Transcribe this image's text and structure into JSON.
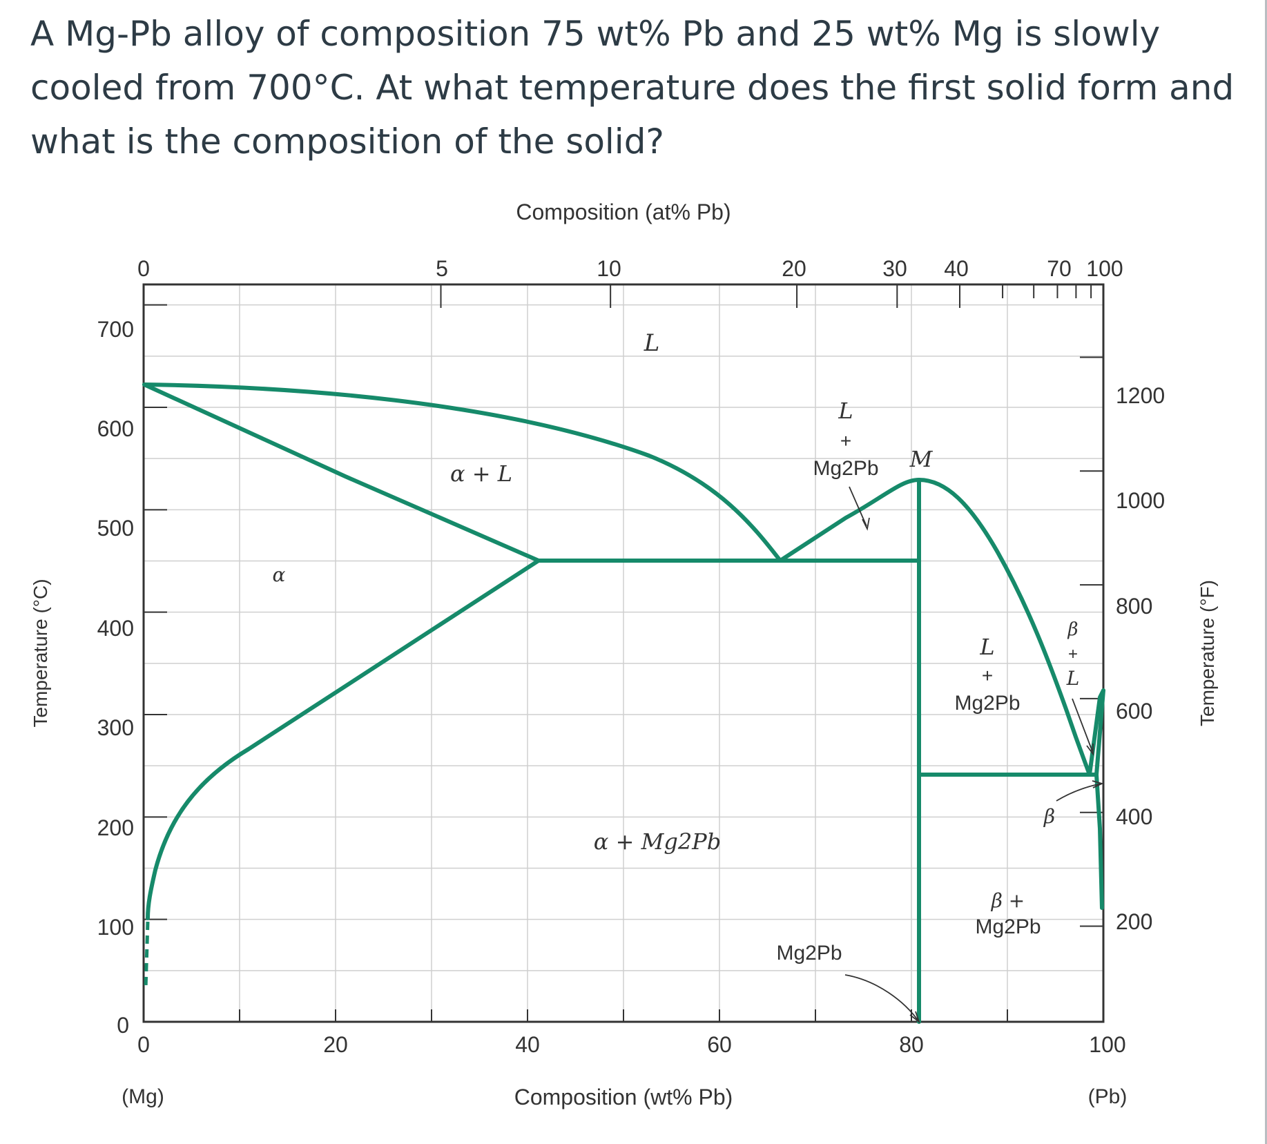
{
  "question": {
    "line1": "A Mg-Pb alloy of composition 75 wt% Pb and 25 wt% Mg is slowly",
    "line2": "cooled from 700°C. At what temperature does the first solid form and",
    "line3": "what is the composition of the solid?"
  },
  "chart_data": {
    "type": "phase-diagram",
    "x_top_label": "Composition (at% Pb)",
    "x_bottom_label": "Composition (wt% Pb)",
    "y_left_label": "Temperature (°C)",
    "y_right_label": "Temperature (°F)",
    "x_bottom_ticks": [
      "0",
      "20",
      "40",
      "60",
      "80",
      "100"
    ],
    "x_top_ticks": [
      "0",
      "5",
      "10",
      "20",
      "30",
      "40",
      "70",
      "100"
    ],
    "y_left_ticks": [
      "0",
      "100",
      "200",
      "300",
      "400",
      "500",
      "600",
      "700"
    ],
    "y_right_ticks": [
      "200",
      "400",
      "600",
      "800",
      "1000",
      "1200"
    ],
    "end_labels": {
      "left": "(Mg)",
      "right": "(Pb)"
    },
    "xlim": [
      0,
      100
    ],
    "ylim": [
      0,
      720
    ],
    "line_color": "#168a6a",
    "region_labels": {
      "L": "L",
      "alpha_L": "α + L",
      "alpha": "α",
      "L_Mg2Pb_top_1": "L",
      "L_Mg2Pb_top_2": "+",
      "L_Mg2Pb_top_3": "Mg2Pb",
      "M": "M",
      "alpha_Mg2Pb": "α + Mg2Pb",
      "L_Mg2Pb_right_1": "L",
      "L_Mg2Pb_right_2": "+",
      "L_Mg2Pb_right_3": "Mg2Pb",
      "beta_L_1": "β",
      "beta_L_2": "+",
      "beta_L_3": "L",
      "beta": "β",
      "beta_Mg2Pb_1": "β +",
      "beta_Mg2Pb_2": "Mg2Pb",
      "Mg2Pb": "Mg2Pb"
    },
    "key_points": {
      "Mg_melting": {
        "x": 0,
        "y": 650
      },
      "alpha_eutectic_solubility": {
        "x": 41,
        "y": 466
      },
      "eutectic_1": {
        "x": 67,
        "y": 466
      },
      "congruent_M": {
        "x": 81,
        "y": 550
      },
      "eutectic_2": {
        "x": 97,
        "y": 250
      },
      "Pb_melting": {
        "x": 100,
        "y": 327
      }
    }
  }
}
